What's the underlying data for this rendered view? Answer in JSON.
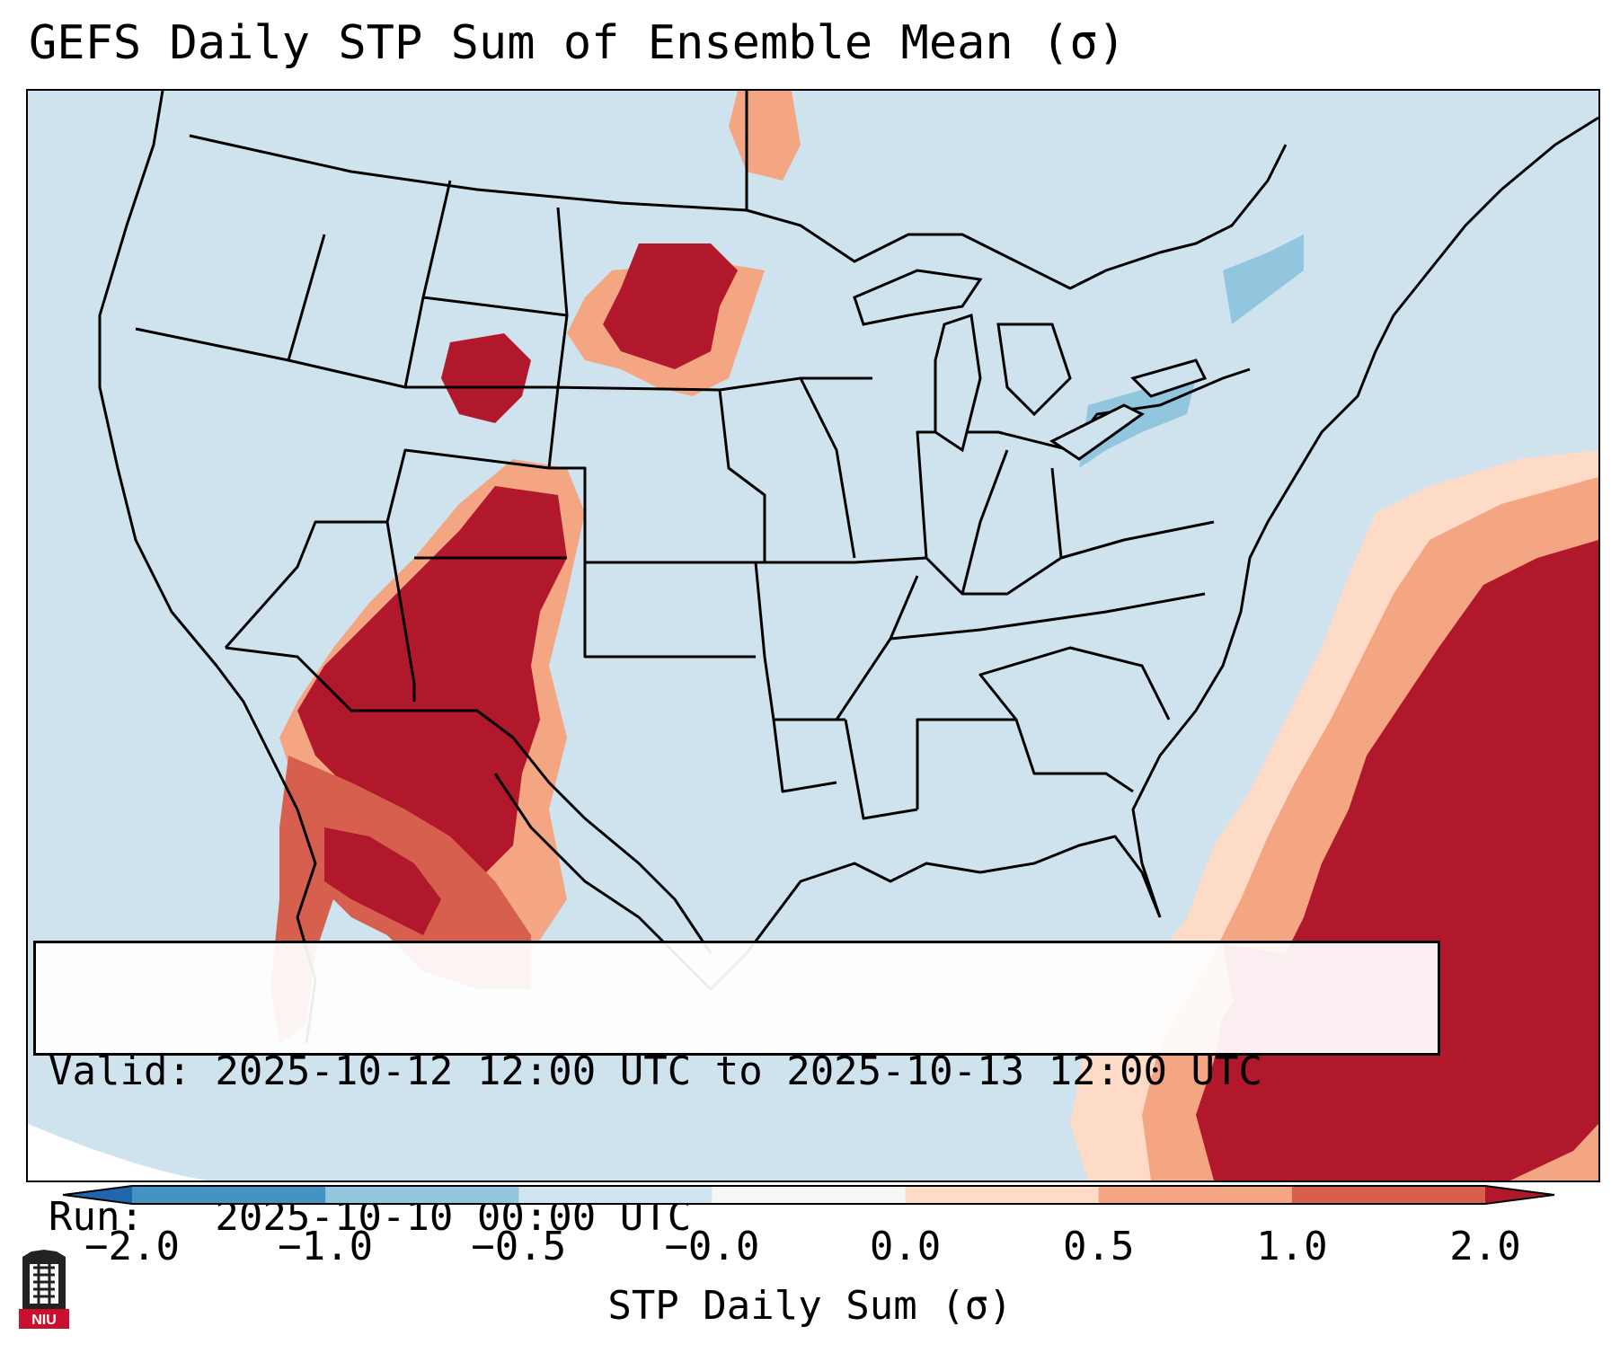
{
  "title": "GEFS Daily STP Sum of Ensemble Mean (σ)",
  "info": {
    "valid_line": "Valid: 2025-10-12 12:00 UTC to 2025-10-13 12:00 UTC",
    "run_line": "Run:   2025-10-10 00:00 UTC"
  },
  "colorbar": {
    "label": "STP Daily Sum (σ)",
    "ticks": [
      "−2.0",
      "−1.0",
      "−0.5",
      "−0.0",
      "0.0",
      "0.5",
      "1.0",
      "2.0"
    ],
    "bins": [
      {
        "range": "< -2.0",
        "color": "#2166ac"
      },
      {
        "range": "-2.0 to -1.0",
        "color": "#4393c3"
      },
      {
        "range": "-1.0 to -0.5",
        "color": "#92c5de"
      },
      {
        "range": "-0.5 to -0.0",
        "color": "#d1e5f0"
      },
      {
        "range": "-0.0 to 0.0",
        "color": "#f7f7f7"
      },
      {
        "range": "0.0 to 0.5",
        "color": "#fddbc7"
      },
      {
        "range": "0.5 to 1.0",
        "color": "#f4a582"
      },
      {
        "range": "1.0 to 2.0",
        "color": "#d6604d"
      },
      {
        "range": "> 2.0",
        "color": "#b2182b"
      }
    ]
  },
  "map": {
    "background_color": "#cfe3ef",
    "regions": [
      {
        "name": "northern-plains-cluster",
        "level": "high",
        "color": "#b2182b"
      },
      {
        "name": "four-corners-cluster",
        "level": "high",
        "color": "#b2182b"
      },
      {
        "name": "northwest-mexico-cluster",
        "level": "moderate",
        "color": "#d6604d"
      },
      {
        "name": "southeast-coast-offshore",
        "level": "high",
        "color": "#b2182b"
      },
      {
        "name": "great-lakes-negative",
        "level": "low",
        "color": "#92c5de"
      }
    ]
  },
  "logo": {
    "text": "NIU",
    "color": "#c8102e"
  }
}
